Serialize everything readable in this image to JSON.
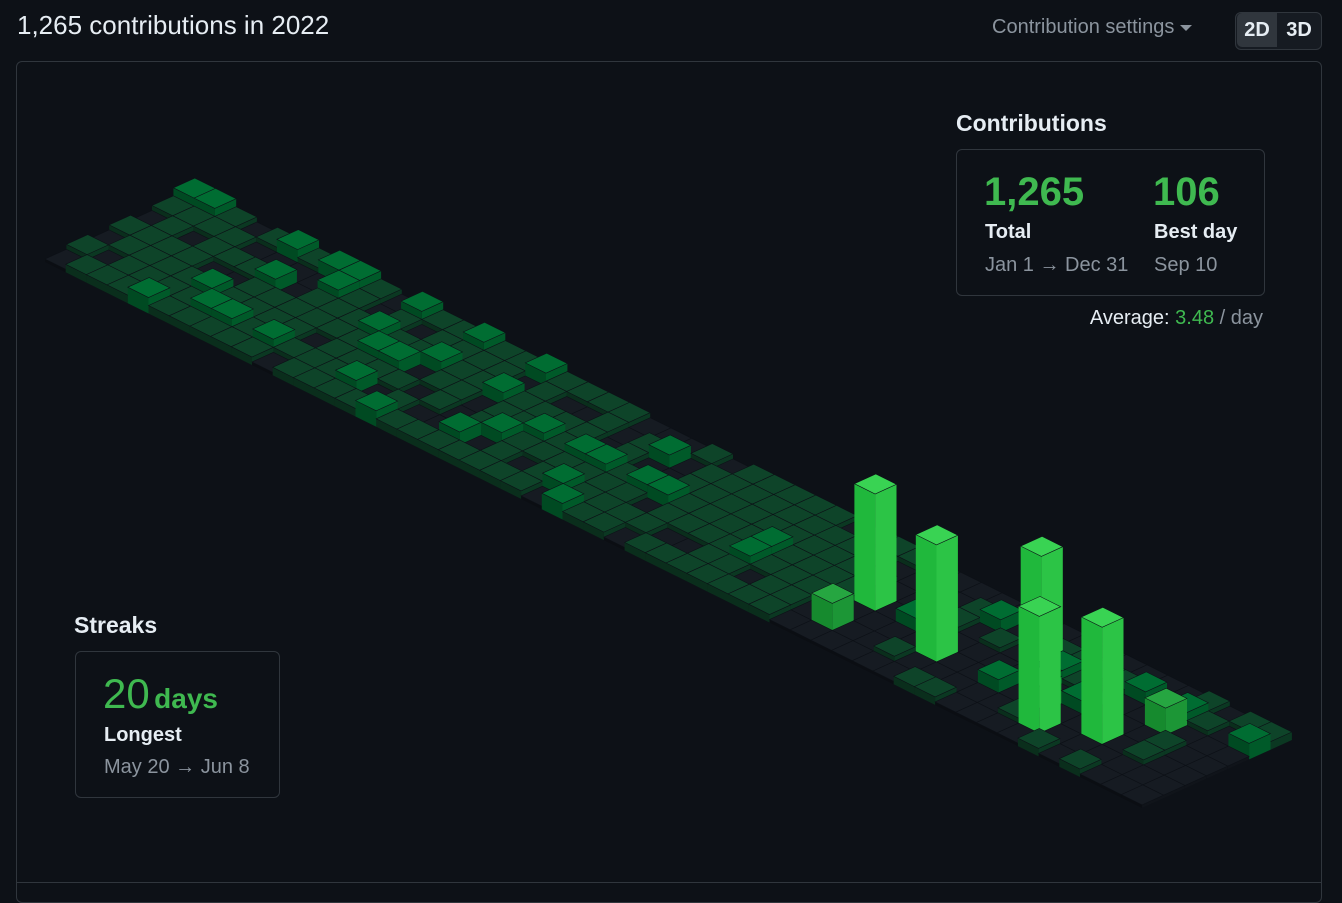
{
  "header": {
    "title": "1,265 contributions in 2022",
    "settings": "Contribution settings",
    "toggle": [
      "2D",
      "3D"
    ]
  },
  "contributions": {
    "heading": "Contributions",
    "total": {
      "value": "1,265",
      "label": "Total",
      "range": "Jan 1 → Dec 31"
    },
    "best_day": {
      "value": "106",
      "label": "Best day",
      "range": "Sep 10"
    },
    "average": {
      "label": "Average:",
      "value": "3.48",
      "unit": "/ day"
    }
  },
  "streaks": {
    "heading": "Streaks",
    "longest": {
      "value": "20",
      "unit": "days",
      "label": "Longest",
      "range": "May 20 → Jun 8"
    }
  }
}
